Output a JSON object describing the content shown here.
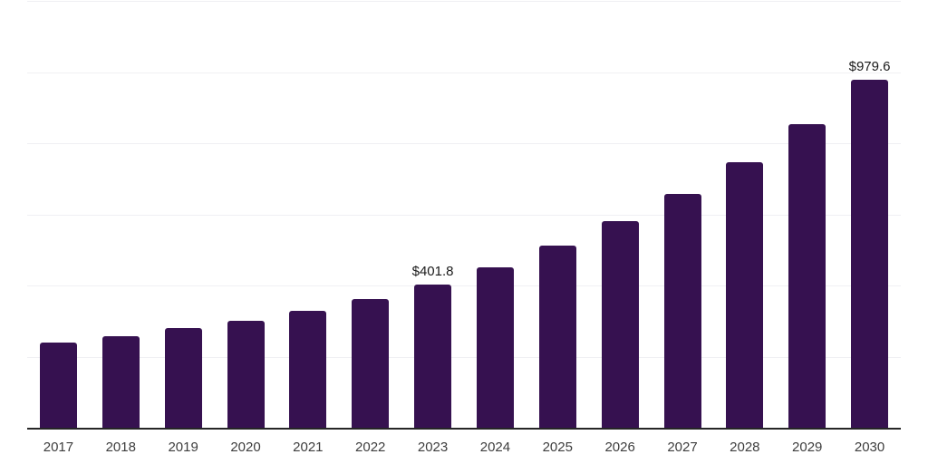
{
  "chart_data": {
    "type": "bar",
    "title": "",
    "categories": [
      "2017",
      "2018",
      "2019",
      "2020",
      "2021",
      "2022",
      "2023",
      "2024",
      "2025",
      "2026",
      "2027",
      "2028",
      "2029",
      "2030"
    ],
    "values": [
      240,
      257,
      280,
      301,
      328,
      362,
      401.8,
      450,
      511,
      580,
      657,
      747,
      854,
      979.6
    ],
    "point_labels": [
      null,
      null,
      null,
      null,
      null,
      null,
      "$401.8",
      null,
      null,
      null,
      null,
      null,
      null,
      "$979.6"
    ],
    "xlabel": "",
    "ylabel": "",
    "ylim": [
      0,
      1200
    ],
    "grid_step": 200,
    "grid": true,
    "legend": false
  },
  "colors": {
    "bar": "#361150",
    "grid": "#f0f0f3",
    "axis": "#262626",
    "value_label": "#1a1a1a",
    "tick_label": "#3d3d3d",
    "background": "#ffffff"
  }
}
